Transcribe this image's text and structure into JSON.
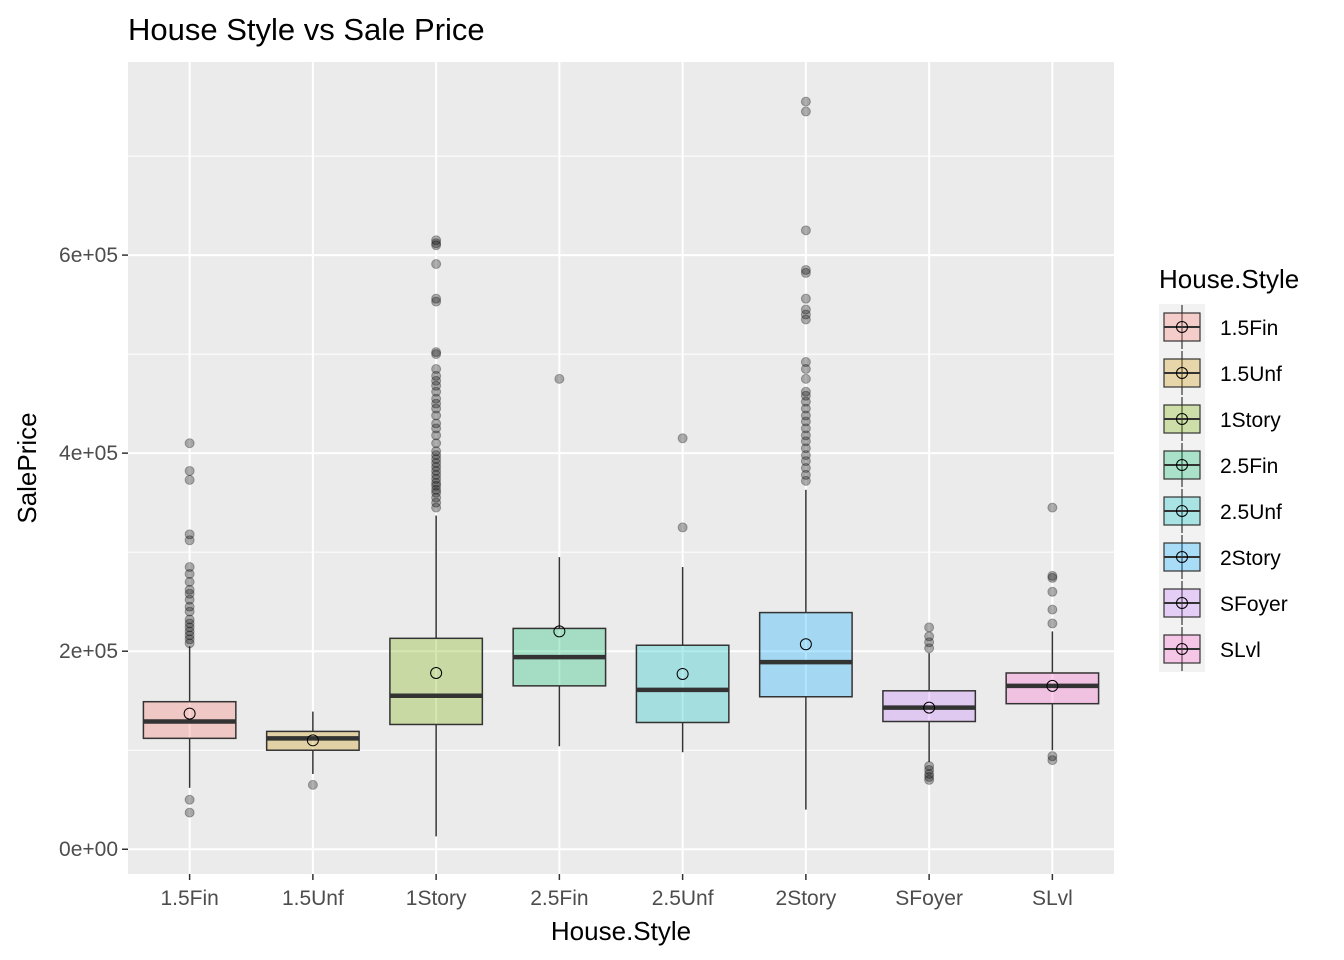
{
  "chart_data": {
    "type": "boxplot",
    "title": "House Style vs Sale Price",
    "xlabel": "House.Style",
    "ylabel": "SalePrice",
    "categories": [
      "1.5Fin",
      "1.5Unf",
      "1Story",
      "2.5Fin",
      "2.5Unf",
      "2Story",
      "SFoyer",
      "SLvl"
    ],
    "yticks": [
      0,
      200000,
      400000,
      600000
    ],
    "ytick_labels": [
      "0e+00",
      "2e+05",
      "4e+05",
      "6e+05"
    ],
    "ylim": [
      -25000,
      795000
    ],
    "grid": true,
    "legend": {
      "title": "House.Style",
      "position": "right"
    },
    "colors": [
      "#F8766D",
      "#CD9600",
      "#7CAE00",
      "#00BE67",
      "#00BFC4",
      "#00A9FF",
      "#C77CFF",
      "#FF61CC"
    ],
    "boxes": [
      {
        "name": "1.5Fin",
        "min": 62000,
        "q1": 112000,
        "median": 129000,
        "q3": 149000,
        "max": 205000,
        "mean": 137000,
        "outliers": [
          37000,
          50000,
          208000,
          212000,
          216000,
          220000,
          224000,
          228000,
          232000,
          240000,
          245000,
          252000,
          258000,
          262000,
          270000,
          278000,
          285000,
          312000,
          318000,
          373000,
          382000,
          410000
        ]
      },
      {
        "name": "1.5Unf",
        "min": 76000,
        "q1": 100000,
        "median": 112000,
        "q3": 119000,
        "max": 139000,
        "mean": 110000,
        "outliers": [
          65000
        ]
      },
      {
        "name": "1Story",
        "min": 13000,
        "q1": 126000,
        "median": 155000,
        "q3": 213000,
        "max": 337000,
        "mean": 178000,
        "outliers": [
          345000,
          350000,
          355000,
          360000,
          363000,
          367000,
          370000,
          374000,
          378000,
          382000,
          386000,
          390000,
          394000,
          398000,
          402000,
          410000,
          418000,
          425000,
          430000,
          438000,
          445000,
          450000,
          455000,
          462000,
          468000,
          473000,
          478000,
          485000,
          500000,
          502000,
          553000,
          556000,
          591000,
          610000,
          612000,
          615000
        ]
      },
      {
        "name": "2.5Fin",
        "min": 104000,
        "q1": 165000,
        "median": 194000,
        "q3": 223000,
        "max": 295000,
        "mean": 220000,
        "outliers": [
          475000
        ]
      },
      {
        "name": "2.5Unf",
        "min": 98000,
        "q1": 128000,
        "median": 161000,
        "q3": 206000,
        "max": 285000,
        "mean": 177000,
        "outliers": [
          325000,
          415000
        ]
      },
      {
        "name": "2Story",
        "min": 40000,
        "q1": 154000,
        "median": 189000,
        "q3": 239000,
        "max": 363000,
        "mean": 207000,
        "outliers": [
          372000,
          378000,
          385000,
          392000,
          398000,
          405000,
          412000,
          418000,
          425000,
          432000,
          438000,
          445000,
          452000,
          458000,
          462000,
          475000,
          485000,
          492000,
          535000,
          540000,
          545000,
          556000,
          582000,
          585000,
          625000,
          745000,
          755000
        ]
      },
      {
        "name": "SFoyer",
        "min": 88000,
        "q1": 129000,
        "median": 143000,
        "q3": 160000,
        "max": 198000,
        "mean": 143000,
        "outliers": [
          70000,
          73000,
          76000,
          80000,
          84000,
          203000,
          209000,
          215000,
          224000
        ]
      },
      {
        "name": "SLvl",
        "min": 100000,
        "q1": 147000,
        "median": 165000,
        "q3": 178000,
        "max": 220000,
        "mean": 165000,
        "outliers": [
          90000,
          94000,
          228000,
          242000,
          260000,
          274000,
          276000,
          345000
        ]
      }
    ]
  }
}
